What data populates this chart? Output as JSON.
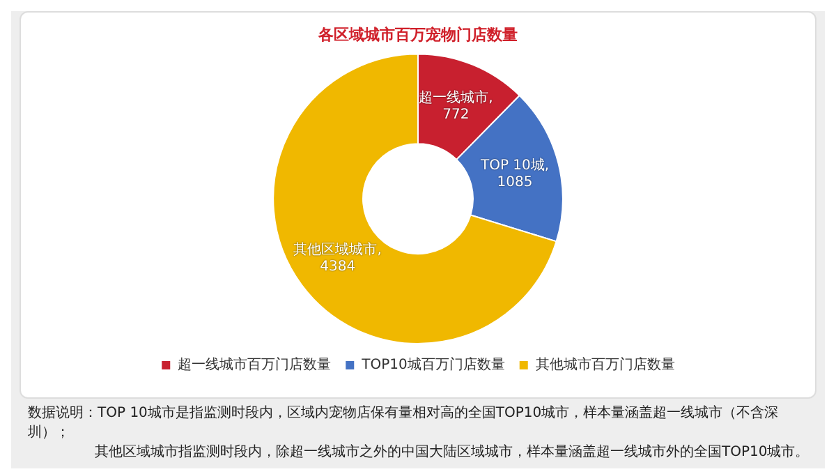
{
  "chart_data": {
    "type": "donut",
    "title": "各区域城市百万宠物门店数量",
    "categories": [
      "超一线城市百万门店数量",
      "TOP10城百万门店数量",
      "其他城市百万门店数量"
    ],
    "values": [
      772,
      1085,
      4384
    ],
    "colors": [
      "#c8202f",
      "#4472c4",
      "#f0b800"
    ],
    "value_labels": [
      "超一线城市,\n772",
      "TOP 10城,\n1085",
      "其他区域城市,\n4384"
    ],
    "legend": "bottom",
    "annotations": [
      "数据说明：TOP 10城市是指监测时段内，区域内宠物店保有量相对高的全国TOP10城市，样本量涵盖超一线城市（不含深圳）；",
      "其他区域城市指监测时段内，除超一线城市之外的中国大陆区域城市，样本量涵盖超一线城市外的全国TOP10城市。"
    ]
  }
}
